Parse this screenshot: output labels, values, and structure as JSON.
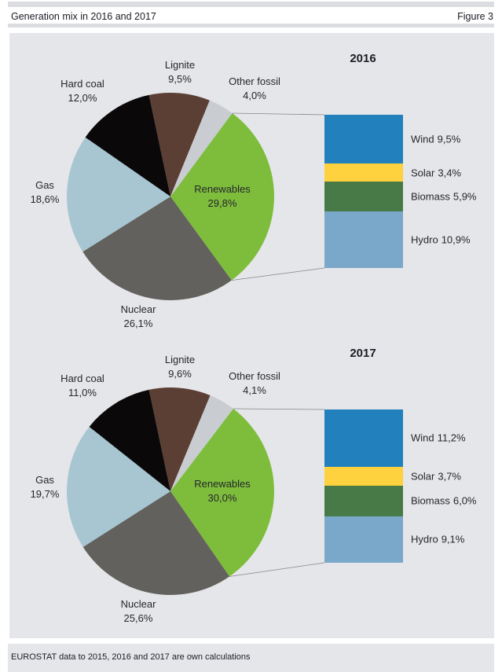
{
  "header": {
    "title": "Generation mix in 2016 and 2017",
    "figure_label": "Figure 3"
  },
  "footer": {
    "note": "EUROSTAT data to 2015, 2016 and 2017 are own calculations"
  },
  "palette": {
    "panel_background": "#e5e6e9",
    "rule": "#dcdde1",
    "text": "#26262c",
    "connector_line": "#85858a"
  },
  "chart_data": [
    {
      "type": "pie",
      "title": "2016",
      "start_angle_deg": -12,
      "breakout_slice": "Renewables",
      "slices": [
        {
          "label": "Lignite",
          "value": 9.5,
          "display": "9,5%",
          "color": "#5b3f35"
        },
        {
          "label": "Other fossil",
          "value": 4.0,
          "display": "4,0%",
          "color": "#c9ccd1"
        },
        {
          "label": "Renewables",
          "value": 29.8,
          "display": "29,8%",
          "color": "#7ebd3c"
        },
        {
          "label": "Nuclear",
          "value": 26.1,
          "display": "26,1%",
          "color": "#62615d"
        },
        {
          "label": "Gas",
          "value": 18.6,
          "display": "18,6%",
          "color": "#a7c6d2"
        },
        {
          "label": "Hard coal",
          "value": 12.0,
          "display": "12,0%",
          "color": "#0a0808"
        }
      ],
      "renewables_breakdown": [
        {
          "label": "Wind",
          "value": 9.5,
          "display": "9,5%",
          "color": "#2280bd"
        },
        {
          "label": "Solar",
          "value": 3.4,
          "display": "3,4%",
          "color": "#fdd23e"
        },
        {
          "label": "Biomass",
          "value": 5.9,
          "display": "5,9%",
          "color": "#487a47"
        },
        {
          "label": "Hydro",
          "value": 10.9,
          "display": "10,9%",
          "color": "#7aa8ca"
        }
      ]
    },
    {
      "type": "pie",
      "title": "2017",
      "start_angle_deg": -12,
      "breakout_slice": "Renewables",
      "slices": [
        {
          "label": "Lignite",
          "value": 9.6,
          "display": "9,6%",
          "color": "#5b3f35"
        },
        {
          "label": "Other fossil",
          "value": 4.1,
          "display": "4,1%",
          "color": "#c9ccd1"
        },
        {
          "label": "Renewables",
          "value": 30.0,
          "display": "30,0%",
          "color": "#7ebd3c"
        },
        {
          "label": "Nuclear",
          "value": 25.6,
          "display": "25,6%",
          "color": "#62615d"
        },
        {
          "label": "Gas",
          "value": 19.7,
          "display": "19,7%",
          "color": "#a7c6d2"
        },
        {
          "label": "Hard coal",
          "value": 11.0,
          "display": "11,0%",
          "color": "#0a0808"
        }
      ],
      "renewables_breakdown": [
        {
          "label": "Wind",
          "value": 11.2,
          "display": "11,2%",
          "color": "#2280bd"
        },
        {
          "label": "Solar",
          "value": 3.7,
          "display": "3,7%",
          "color": "#fdd23e"
        },
        {
          "label": "Biomass",
          "value": 6.0,
          "display": "6,0%",
          "color": "#487a47"
        },
        {
          "label": "Hydro",
          "value": 9.1,
          "display": "9,1%",
          "color": "#7aa8ca"
        }
      ]
    }
  ]
}
